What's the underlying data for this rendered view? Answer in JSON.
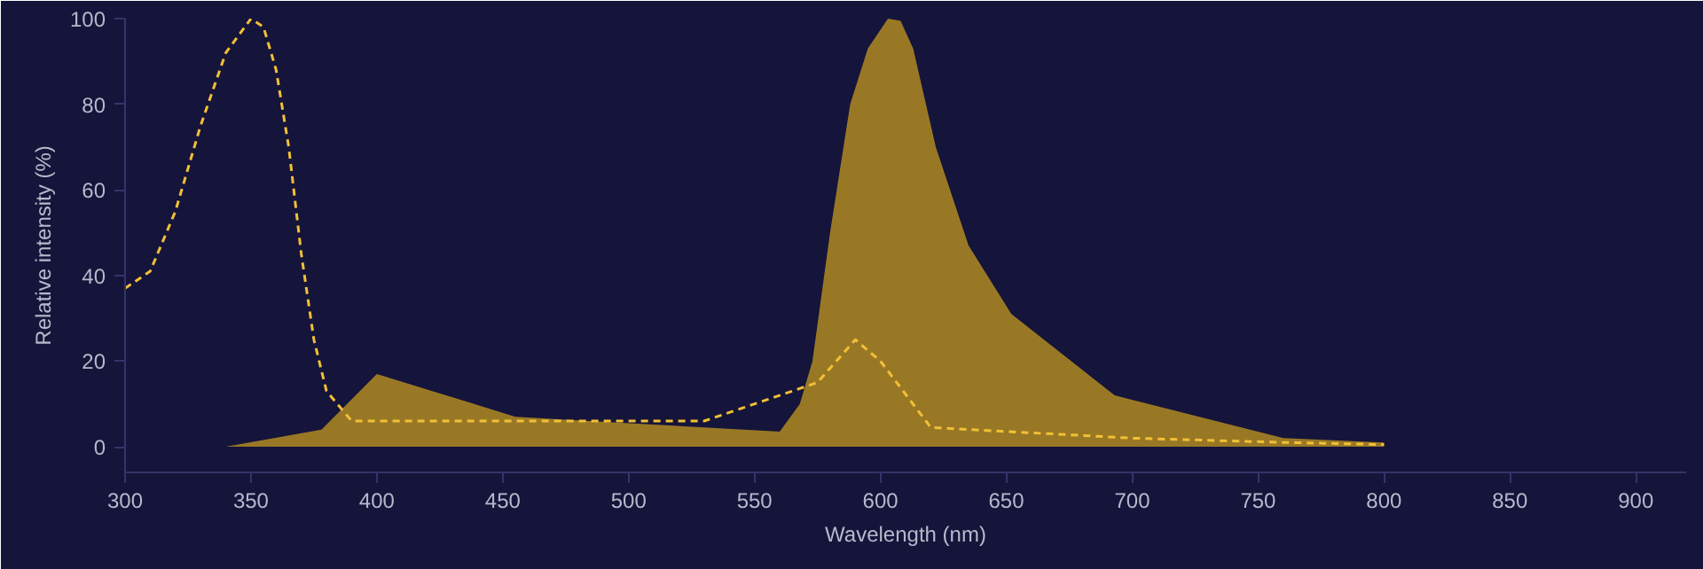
{
  "chart_data": {
    "type": "area",
    "xlabel": "Wavelength (nm)",
    "ylabel": "Relative intensity (%)",
    "xlim": [
      300,
      920
    ],
    "ylim": [
      -6,
      100
    ],
    "xticks": [
      300,
      350,
      400,
      450,
      500,
      550,
      600,
      650,
      700,
      750,
      800,
      850,
      900
    ],
    "yticks": [
      0,
      20,
      40,
      60,
      80,
      100
    ],
    "grid": false,
    "series": [
      {
        "color": "#b08a22",
        "x": [
          340,
          378,
          400,
          455,
          500,
          560,
          568,
          573,
          580,
          588,
          595,
          603,
          608,
          613,
          622,
          635,
          652,
          693,
          760,
          800
        ],
        "values": [
          0,
          4,
          17,
          7,
          5.5,
          3.5,
          10,
          20,
          50,
          80,
          93,
          100,
          99.5,
          93,
          70,
          47,
          31,
          12,
          2,
          1
        ]
      },
      {
        "type": "line",
        "line_style": "dashed",
        "color": "#f2c037",
        "x": [
          300,
          310,
          320,
          330,
          340,
          350,
          355,
          360,
          365,
          370,
          375,
          380,
          390,
          400,
          530,
          575,
          590,
          600,
          620,
          700,
          760,
          800
        ],
        "values": [
          37,
          41,
          55,
          75,
          92,
          100,
          98,
          88,
          70,
          45,
          25,
          13,
          6,
          6,
          6,
          15,
          25,
          20,
          4.5,
          2,
          1,
          0.5
        ]
      }
    ]
  }
}
